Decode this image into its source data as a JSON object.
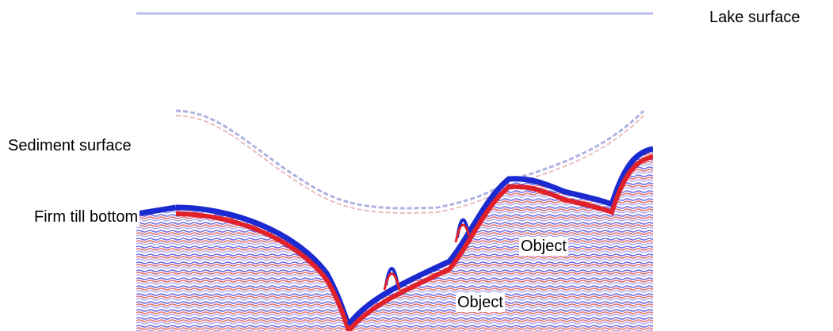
{
  "labels": {
    "lake_surface": "Lake surface",
    "sediment_surface": "Sediment surface",
    "firm_till_bottom": "Firm till bottom",
    "object_upper": "Object",
    "object_lower": "Object"
  },
  "colors": {
    "positive_reflection": "#e0202a",
    "negative_reflection": "#1a2ad0",
    "background": "#ffffff"
  }
}
